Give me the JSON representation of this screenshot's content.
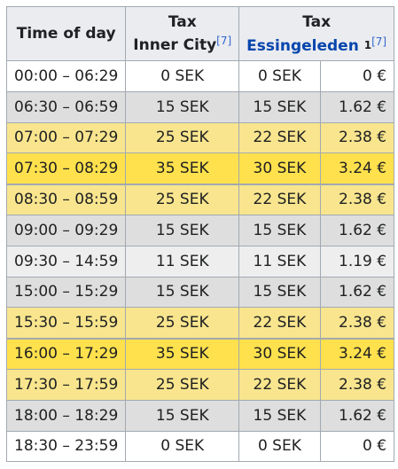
{
  "header": {
    "time_col": "Time of day",
    "inner_tax": "Tax",
    "inner_city": "Inner City",
    "inner_ref": "[7]",
    "ess_tax": "Tax",
    "ess_name": "Essingeleden",
    "ess_note": "1",
    "ess_ref": "[7]"
  },
  "colors": {
    "night": "#ffffff",
    "low": "#dedede",
    "midday": "#eeeeee",
    "mid": "#f8e58e",
    "peak": "#ffe14d",
    "link": "#0645ad"
  },
  "rows": [
    {
      "time": "00:00 – 06:29",
      "inner": "0 SEK",
      "ess_sek": "0 SEK",
      "ess_eur": "0 €",
      "level": "night"
    },
    {
      "time": "06:30 – 06:59",
      "inner": "15 SEK",
      "ess_sek": "15 SEK",
      "ess_eur": "1.62 €",
      "level": "low"
    },
    {
      "time": "07:00 – 07:29",
      "inner": "25 SEK",
      "ess_sek": "22 SEK",
      "ess_eur": "2.38 €",
      "level": "mid"
    },
    {
      "time": "07:30 – 08:29",
      "inner": "35 SEK",
      "ess_sek": "30 SEK",
      "ess_eur": "3.24 €",
      "level": "peak"
    },
    {
      "time": "08:30 – 08:59",
      "inner": "25 SEK",
      "ess_sek": "22 SEK",
      "ess_eur": "2.38 €",
      "level": "mid"
    },
    {
      "time": "09:00 – 09:29",
      "inner": "15 SEK",
      "ess_sek": "15 SEK",
      "ess_eur": "1.62 €",
      "level": "low"
    },
    {
      "time": "09:30 – 14:59",
      "inner": "11 SEK",
      "ess_sek": "11 SEK",
      "ess_eur": "1.19 €",
      "level": "midday"
    },
    {
      "time": "15:00 – 15:29",
      "inner": "15 SEK",
      "ess_sek": "15 SEK",
      "ess_eur": "1.62 €",
      "level": "low"
    },
    {
      "time": "15:30 – 15:59",
      "inner": "25 SEK",
      "ess_sek": "22 SEK",
      "ess_eur": "2.38 €",
      "level": "mid"
    },
    {
      "time": "16:00 – 17:29",
      "inner": "35 SEK",
      "ess_sek": "30 SEK",
      "ess_eur": "3.24 €",
      "level": "peak"
    },
    {
      "time": "17:30 – 17:59",
      "inner": "25 SEK",
      "ess_sek": "22 SEK",
      "ess_eur": "2.38 €",
      "level": "mid"
    },
    {
      "time": "18:00 – 18:29",
      "inner": "15 SEK",
      "ess_sek": "15 SEK",
      "ess_eur": "1.62 €",
      "level": "low"
    },
    {
      "time": "18:30 – 23:59",
      "inner": "0 SEK",
      "ess_sek": "0 SEK",
      "ess_eur": "0 €",
      "level": "night"
    }
  ]
}
